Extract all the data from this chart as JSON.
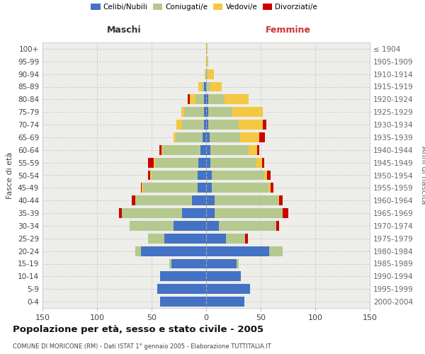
{
  "age_groups": [
    "0-4",
    "5-9",
    "10-14",
    "15-19",
    "20-24",
    "25-29",
    "30-34",
    "35-39",
    "40-44",
    "45-49",
    "50-54",
    "55-59",
    "60-64",
    "65-69",
    "70-74",
    "75-79",
    "80-84",
    "85-89",
    "90-94",
    "95-99",
    "100+"
  ],
  "birth_years": [
    "2000-2004",
    "1995-1999",
    "1990-1994",
    "1985-1989",
    "1980-1984",
    "1975-1979",
    "1970-1974",
    "1965-1969",
    "1960-1964",
    "1955-1959",
    "1950-1954",
    "1945-1949",
    "1940-1944",
    "1935-1939",
    "1930-1934",
    "1925-1929",
    "1920-1924",
    "1915-1919",
    "1910-1914",
    "1905-1909",
    "≤ 1904"
  ],
  "colors": {
    "celibi": "#4472c4",
    "coniugati": "#b5c98e",
    "vedovi": "#f5c842",
    "divorziati": "#cc0000"
  },
  "maschi": {
    "celibi": [
      42,
      45,
      42,
      32,
      60,
      38,
      30,
      22,
      13,
      8,
      8,
      7,
      5,
      3,
      2,
      2,
      2,
      2,
      0,
      0,
      0
    ],
    "coniugati": [
      0,
      0,
      0,
      2,
      5,
      15,
      40,
      55,
      52,
      50,
      42,
      40,
      35,
      25,
      20,
      18,
      8,
      2,
      0,
      0,
      0
    ],
    "vedovi": [
      0,
      0,
      0,
      0,
      0,
      0,
      0,
      0,
      0,
      1,
      1,
      1,
      1,
      2,
      5,
      3,
      5,
      3,
      1,
      0,
      0
    ],
    "divorziati": [
      0,
      0,
      0,
      0,
      0,
      0,
      0,
      3,
      3,
      1,
      2,
      5,
      2,
      0,
      0,
      0,
      2,
      0,
      0,
      0,
      0
    ]
  },
  "femmine": {
    "celibi": [
      35,
      40,
      32,
      28,
      58,
      18,
      12,
      8,
      8,
      5,
      5,
      4,
      4,
      3,
      2,
      2,
      2,
      0,
      0,
      0,
      0
    ],
    "coniugati": [
      0,
      0,
      0,
      2,
      12,
      18,
      52,
      62,
      58,
      52,
      48,
      42,
      35,
      28,
      28,
      22,
      15,
      4,
      2,
      0,
      0
    ],
    "vedovi": [
      0,
      0,
      0,
      0,
      0,
      0,
      0,
      0,
      1,
      2,
      3,
      5,
      8,
      18,
      22,
      28,
      22,
      10,
      5,
      2,
      1
    ],
    "divorziati": [
      0,
      0,
      0,
      0,
      0,
      2,
      3,
      5,
      3,
      3,
      3,
      2,
      2,
      5,
      3,
      0,
      0,
      0,
      0,
      0,
      0
    ]
  },
  "xlim": 150,
  "title": "Popolazione per età, sesso e stato civile - 2005",
  "subtitle": "COMUNE DI MORICONE (RM) - Dati ISTAT 1° gennaio 2005 - Elaborazione TUTTITALIA.IT",
  "ylabel_left": "Fasce di età",
  "ylabel_right": "Anni di nascita",
  "xlabel_left": "Maschi",
  "xlabel_right": "Femmine",
  "plot_bg": "#ffffff",
  "axes_bg": "#ededea"
}
